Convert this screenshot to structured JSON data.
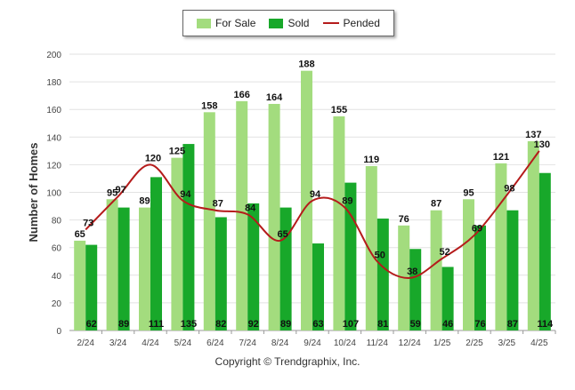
{
  "chart_data": {
    "type": "bar",
    "ylabel": "Number of Homes",
    "ylim": [
      0,
      200
    ],
    "yticks": [
      0,
      20,
      40,
      60,
      80,
      100,
      120,
      140,
      160,
      180,
      200
    ],
    "categories": [
      "2/24",
      "3/24",
      "4/24",
      "5/24",
      "6/24",
      "7/24",
      "8/24",
      "9/24",
      "10/24",
      "11/24",
      "12/24",
      "1/25",
      "2/25",
      "3/25",
      "4/25"
    ],
    "series": [
      {
        "name": "For Sale",
        "kind": "bar",
        "color": "#a3dc7e",
        "values": [
          65,
          95,
          89,
          125,
          158,
          166,
          164,
          188,
          155,
          119,
          76,
          87,
          95,
          121,
          137
        ]
      },
      {
        "name": "Sold",
        "kind": "bar",
        "color": "#18a82a",
        "values": [
          62,
          89,
          111,
          135,
          82,
          92,
          89,
          63,
          107,
          81,
          59,
          46,
          76,
          87,
          114
        ]
      },
      {
        "name": "Pended",
        "kind": "line",
        "color": "#b51b1b",
        "values": [
          73,
          97,
          120,
          94,
          87,
          84,
          65,
          94,
          89,
          50,
          38,
          52,
          69,
          98,
          130
        ]
      }
    ],
    "legend_position": "top-center",
    "grid": true
  },
  "footer": {
    "copyright": "Copyright © Trendgraphix, Inc."
  }
}
